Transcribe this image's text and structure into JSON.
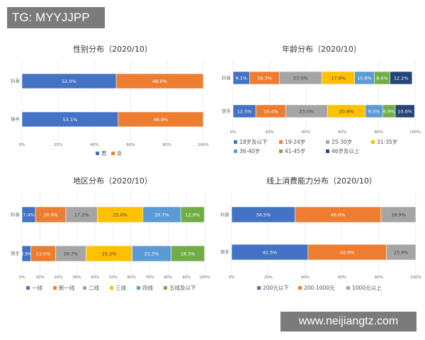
{
  "overlay": {
    "tag": "TG: MYYJJPP",
    "watermark": "www.neijiangtz.com"
  },
  "colors": {
    "blue": "#4472c4",
    "orange": "#ed7d31",
    "gray": "#a5a5a5",
    "yellow": "#ffc000",
    "lightblue": "#5b9bd5",
    "green": "#70ad47",
    "navy": "#264478"
  },
  "chart_data": [
    {
      "type": "bar",
      "orientation": "horizontal-stacked-100",
      "title": "性别分布（2020/10）",
      "categories": [
        "抖音",
        "快手"
      ],
      "xticks": [
        "0%",
        "20%",
        "40%",
        "60%",
        "80%",
        "100%"
      ],
      "legend_placement": "bottom",
      "series": [
        {
          "name": "男",
          "color": "#4472c4",
          "values": [
            52.0,
            53.1
          ],
          "labels": [
            "52.0%",
            "53.1%"
          ]
        },
        {
          "name": "女",
          "color": "#ed7d31",
          "values": [
            48.0,
            46.9
          ],
          "labels": [
            "48.0%",
            "46.9%"
          ]
        }
      ]
    },
    {
      "type": "bar",
      "orientation": "horizontal-stacked-100",
      "title": "年龄分布（2020/10）",
      "categories": [
        "抖音",
        "快手"
      ],
      "xticks": [
        "0%",
        "20%",
        "40%",
        "60%",
        "80%",
        "100%"
      ],
      "legend_placement": "bottom",
      "series": [
        {
          "name": "18岁及以下",
          "color": "#4472c4",
          "values": [
            9.1,
            12.5
          ],
          "labels": [
            "9.1%",
            "12.5%"
          ]
        },
        {
          "name": "19-24岁",
          "color": "#ed7d31",
          "values": [
            16.3,
            16.4
          ],
          "labels": [
            "16.3%",
            "16.4%"
          ]
        },
        {
          "name": "25-30岁",
          "color": "#a5a5a5",
          "values": [
            23.5,
            23.0
          ],
          "labels": [
            "23.5%",
            "23.0%"
          ]
        },
        {
          "name": "31-35岁",
          "color": "#ffc000",
          "values": [
            17.9,
            20.8
          ],
          "labels": [
            "17.9%",
            "20.8%"
          ]
        },
        {
          "name": "36-40岁",
          "color": "#5b9bd5",
          "values": [
            10.8,
            9.5
          ],
          "labels": [
            "10.8%",
            "9.5%"
          ]
        },
        {
          "name": "41-45岁",
          "color": "#70ad47",
          "values": [
            8.6,
            6.9
          ],
          "labels": [
            "8.6%",
            "6.9%"
          ]
        },
        {
          "name": "46岁及以上",
          "color": "#264478",
          "values": [
            12.2,
            10.6
          ],
          "labels": [
            "12.2%",
            "10.6%"
          ]
        }
      ]
    },
    {
      "type": "bar",
      "orientation": "horizontal-stacked-100",
      "title": "地区分布（2020/10）",
      "categories": [
        "抖音",
        "快手"
      ],
      "xticks": [
        "0%",
        "10%",
        "20%",
        "30%",
        "40%",
        "50%",
        "60%",
        "70%",
        "80%",
        "90%",
        "100%"
      ],
      "legend_placement": "bottom",
      "series": [
        {
          "name": "一线",
          "color": "#4472c4",
          "values": [
            7.4,
            4.9
          ],
          "labels": [
            "7.4%",
            "4.9%"
          ]
        },
        {
          "name": "新一线",
          "color": "#ed7d31",
          "values": [
            16.6,
            13.5
          ],
          "labels": [
            "16.6%",
            "13.5%"
          ]
        },
        {
          "name": "二线",
          "color": "#a5a5a5",
          "values": [
            17.2,
            16.7
          ],
          "labels": [
            "17.2%",
            "16.7%"
          ]
        },
        {
          "name": "三线",
          "color": "#ffc000",
          "values": [
            25.0,
            25.2
          ],
          "labels": [
            "25.0%",
            "25.2%"
          ]
        },
        {
          "name": "四线",
          "color": "#5b9bd5",
          "values": [
            20.7,
            21.3
          ],
          "labels": [
            "20.7%",
            "21.3%"
          ]
        },
        {
          "name": "五线及以下",
          "color": "#70ad47",
          "values": [
            12.9,
            18.3
          ],
          "labels": [
            "12.9%",
            "18.3%"
          ]
        }
      ]
    },
    {
      "type": "bar",
      "orientation": "horizontal-stacked-100",
      "title": "线上消费能力分布（2020/10）",
      "categories": [
        "抖音",
        "快手"
      ],
      "xticks": [
        "0%",
        "20%",
        "40%",
        "60%",
        "80%",
        "100%"
      ],
      "legend_placement": "bottom",
      "series": [
        {
          "name": "200元以下",
          "color": "#4472c4",
          "values": [
            34.5,
            41.5
          ],
          "labels": [
            "34.5%",
            "41.5%"
          ]
        },
        {
          "name": "200-1000元",
          "color": "#ed7d31",
          "values": [
            46.6,
            42.6
          ],
          "labels": [
            "46.6%",
            "42.6%"
          ]
        },
        {
          "name": "1000元以上",
          "color": "#a5a5a5",
          "values": [
            18.9,
            15.9
          ],
          "labels": [
            "18.9%",
            "15.9%"
          ]
        }
      ]
    }
  ]
}
